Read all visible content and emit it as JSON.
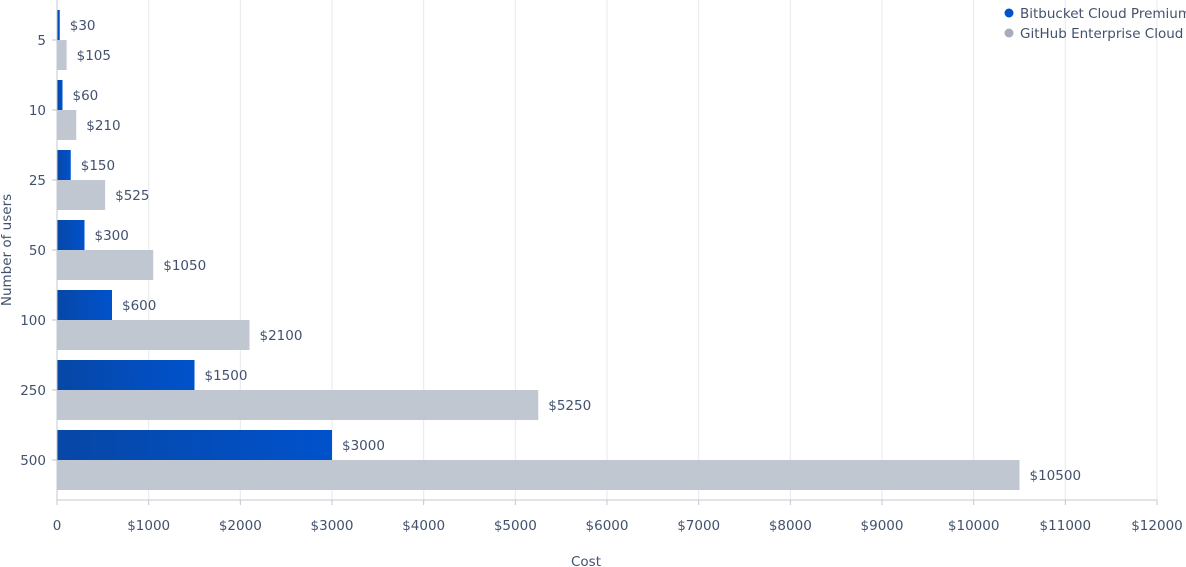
{
  "chart_data": {
    "type": "bar",
    "orientation": "horizontal",
    "categories": [
      "5",
      "10",
      "25",
      "50",
      "100",
      "250",
      "500"
    ],
    "series": [
      {
        "name": "Bitbucket Cloud Premium",
        "color": "#0052cc",
        "values": [
          30,
          60,
          150,
          300,
          600,
          1500,
          3000
        ],
        "labels": [
          "$30",
          "$60",
          "$150",
          "$300",
          "$600",
          "$1500",
          "$3000"
        ]
      },
      {
        "name": "GitHub Enterprise Cloud",
        "color": "#c1c7d0",
        "values": [
          105,
          210,
          525,
          1050,
          2100,
          5250,
          10500
        ],
        "labels": [
          "$105",
          "$210",
          "$525",
          "$1050",
          "$2100",
          "$5250",
          "$10500"
        ]
      }
    ],
    "xlabel": "Cost",
    "ylabel": "Number of users",
    "xlim": [
      0,
      12000
    ],
    "x_ticks": [
      0,
      1000,
      2000,
      3000,
      4000,
      5000,
      6000,
      7000,
      8000,
      9000,
      10000,
      11000,
      12000
    ],
    "x_tick_labels": [
      "0",
      "$1000",
      "$2000",
      "$3000",
      "$4000",
      "$5000",
      "$6000",
      "$7000",
      "$8000",
      "$9000",
      "$10000",
      "$11000",
      "$12000"
    ],
    "grid": true,
    "legend_position": "top-right"
  }
}
